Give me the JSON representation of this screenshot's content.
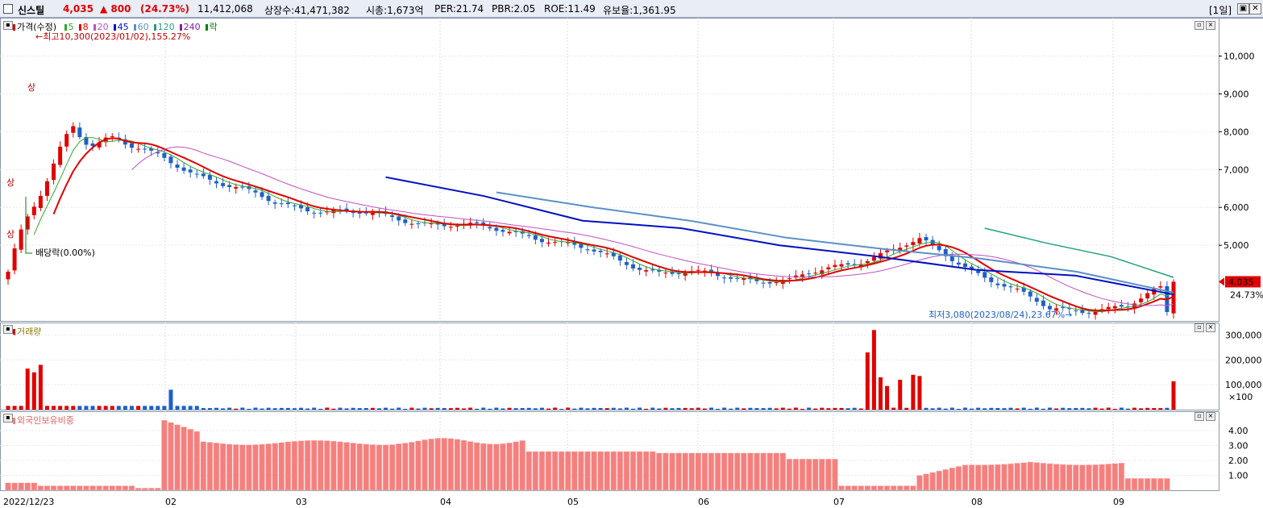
{
  "header": {
    "name": "신스틸",
    "price": "4,035",
    "change": "▲ 800",
    "change_pct": "(24.73%)",
    "volume": "11,412,068",
    "listed": "상장수:41,471,382",
    "mktcap": "시총:1,673억",
    "per": "PER:21.74",
    "pbr": "PBR:2.05",
    "roe": "ROE:11.49",
    "float_ratio": "유보율:1,361.95",
    "period": "[1일]",
    "up_color": "#e00000",
    "down_color": "#1f5fc8"
  },
  "legend": {
    "price_label": "가격(수정)",
    "ma_items": [
      {
        "label": "5",
        "color": "#2fa82f"
      },
      {
        "label": "8",
        "color": "#e00000"
      },
      {
        "label": "20",
        "color": "#c050c0"
      },
      {
        "label": "45",
        "color": "#0010c0"
      },
      {
        "label": "60",
        "color": "#5a90c8"
      },
      {
        "label": "120",
        "color": "#20a080"
      },
      {
        "label": "240",
        "color": "#8020a0"
      },
      {
        "label": "락",
        "color": "#008000"
      }
    ],
    "volume_label": "거래량",
    "foreign_label": "외국인보유비중"
  },
  "annotations": {
    "high": "최고10,300(2023/01/02),155.27%",
    "low": "최저3,080(2023/08/24),23.67%",
    "dividend": "배당락(0.00%)",
    "limit_up": "상",
    "current_price": "4,035",
    "current_pct": "24.73%"
  },
  "chart_data": [
    {
      "type": "candlestick",
      "title": "가격(수정)",
      "y_ticks": [
        "10,000",
        "9,000",
        "8,000",
        "7,000",
        "6,000",
        "5,000"
      ],
      "ylim": [
        3000,
        10800
      ],
      "x_ticks": [
        "2022/12/23",
        "02",
        "03",
        "04",
        "05",
        "06",
        "07",
        "08",
        "09"
      ],
      "anchors": [
        {
          "month": "2022/12/23",
          "close": 4300
        },
        {
          "month": "01",
          "close": 8200
        },
        {
          "month": "02",
          "close": 6100
        },
        {
          "month": "03",
          "close": 5700
        },
        {
          "month": "04",
          "close": 5300
        },
        {
          "month": "05",
          "close": 4300
        },
        {
          "month": "06",
          "close": 4050
        },
        {
          "month": "07",
          "close": 5100
        },
        {
          "month": "08",
          "close": 3300
        },
        {
          "month": "09",
          "close": 3350
        },
        {
          "month": "09 end",
          "close": 4035
        }
      ],
      "series": [
        {
          "name": "45",
          "values": [
            6800,
            6300,
            5650,
            5450,
            5000,
            4700,
            4350,
            4200,
            3700
          ]
        },
        {
          "name": "60",
          "values": [
            6400,
            6000,
            5650,
            5200,
            4900,
            4650,
            4300,
            3750
          ]
        },
        {
          "name": "120",
          "values": [
            5450,
            5050,
            4700,
            4150
          ]
        }
      ]
    },
    {
      "type": "bar",
      "title": "거래량",
      "y_ticks": [
        "300,000",
        "200,000",
        "100,000"
      ],
      "unit": "×100",
      "ylim": [
        0,
        350000
      ],
      "peaks": [
        {
          "month": "01",
          "value": 180000
        },
        {
          "month": "07",
          "value": 320000
        },
        {
          "month": "09 end",
          "value": 114120
        }
      ]
    },
    {
      "type": "bar",
      "title": "외국인보유비중",
      "y_ticks": [
        "4.00",
        "3.00",
        "2.00",
        "1.00"
      ],
      "ylim": [
        0,
        5.3
      ],
      "monthly_level": [
        {
          "month": "01",
          "value": 0.2
        },
        {
          "month": "02",
          "value": 4.8
        },
        {
          "month": "03",
          "value": 3.2
        },
        {
          "month": "04",
          "value": 3.3
        },
        {
          "month": "05",
          "value": 2.5
        },
        {
          "month": "06",
          "value": 2.4
        },
        {
          "month": "07",
          "value": 0.3
        },
        {
          "month": "08",
          "value": 1.9
        },
        {
          "month": "09",
          "value": 0.8
        }
      ]
    }
  ]
}
